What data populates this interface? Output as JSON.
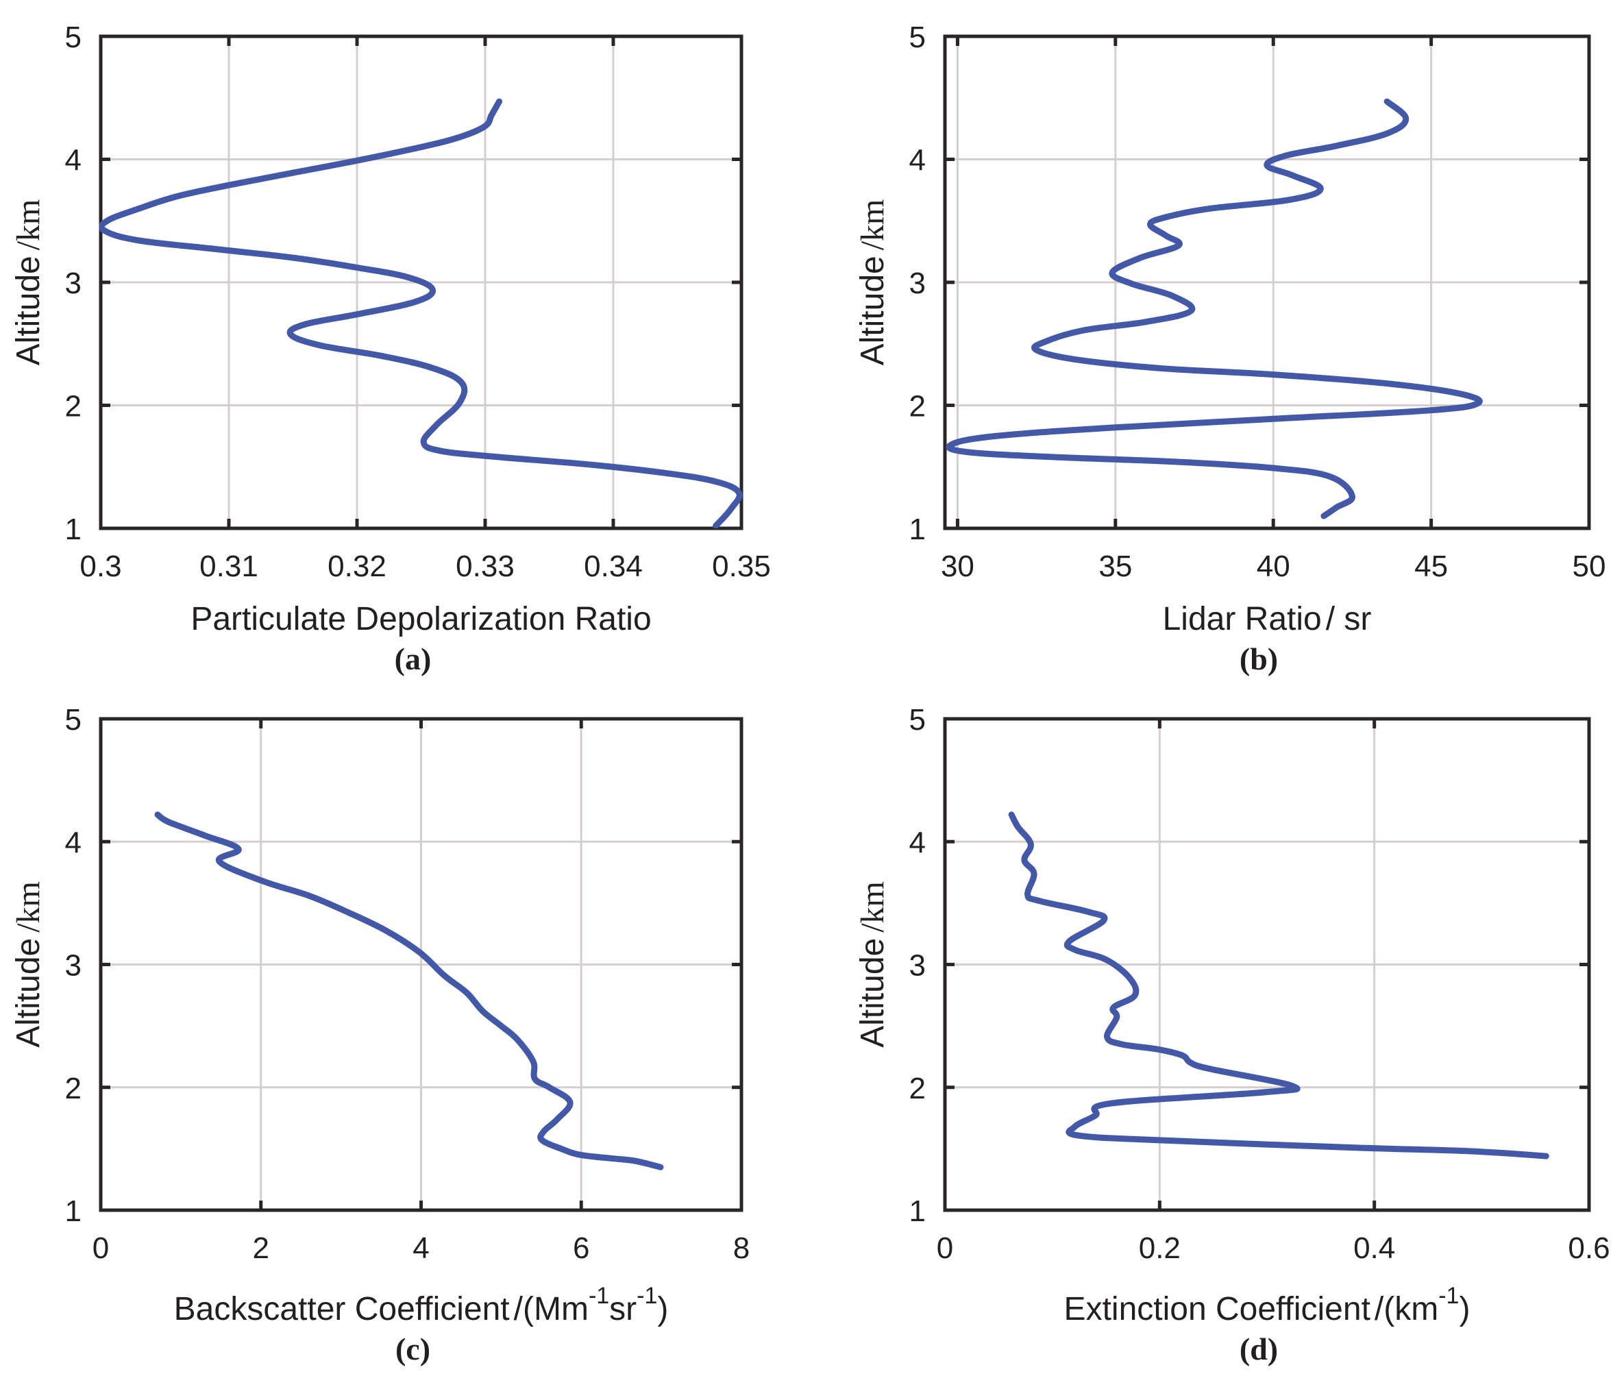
{
  "colors": {
    "series": "#4359a8",
    "axis": "#2b2626",
    "grid": "#d6cece",
    "text": "#231f20"
  },
  "chart_data": [
    {
      "id": "a",
      "type": "line",
      "panel_label": "(a)",
      "title": "",
      "xlabel": "Particulate Depolarization Ratio",
      "xlabel_unit": "",
      "xlabel_sup": [],
      "ylabel_main": "Altitude",
      "ylabel_unit": "/km",
      "xlim": [
        0.3,
        0.35
      ],
      "ylim": [
        1,
        5
      ],
      "xticks": [
        0.3,
        0.31,
        0.32,
        0.33,
        0.34,
        0.35
      ],
      "xtick_labels": [
        "0.3",
        "0.31",
        "0.32",
        "0.33",
        "0.34",
        "0.35"
      ],
      "yticks": [
        1,
        2,
        3,
        4,
        5
      ],
      "ytick_labels": [
        "1",
        "2",
        "3",
        "4",
        "5"
      ],
      "grid": true,
      "series": [
        {
          "name": "depolarization",
          "x": [
            0.3311,
            0.3305,
            0.33,
            0.328,
            0.325,
            0.32,
            0.315,
            0.31,
            0.306,
            0.303,
            0.3005,
            0.3003,
            0.303,
            0.309,
            0.315,
            0.32,
            0.324,
            0.3259,
            0.3245,
            0.32,
            0.316,
            0.3148,
            0.317,
            0.322,
            0.326,
            0.3282,
            0.328,
            0.3262,
            0.3252,
            0.3265,
            0.331,
            0.338,
            0.344,
            0.348,
            0.3498,
            0.3492,
            0.348
          ],
          "y": [
            4.47,
            4.36,
            4.27,
            4.18,
            4.1,
            3.99,
            3.89,
            3.79,
            3.7,
            3.6,
            3.5,
            3.42,
            3.34,
            3.27,
            3.2,
            3.12,
            3.04,
            2.94,
            2.84,
            2.74,
            2.66,
            2.58,
            2.49,
            2.4,
            2.3,
            2.18,
            2.02,
            1.84,
            1.7,
            1.63,
            1.58,
            1.52,
            1.45,
            1.38,
            1.29,
            1.16,
            1.02
          ]
        }
      ]
    },
    {
      "id": "b",
      "type": "line",
      "panel_label": "(b)",
      "title": "",
      "xlabel": "Lidar Ratio",
      "xlabel_unit": "/ sr",
      "xlabel_sup": [],
      "ylabel_main": "Altitude",
      "ylabel_unit": "/km",
      "xlim": [
        29.6,
        50
      ],
      "ylim": [
        1,
        5
      ],
      "xticks": [
        30,
        35,
        40,
        45,
        50
      ],
      "xtick_labels": [
        "30",
        "35",
        "40",
        "45",
        "50"
      ],
      "yticks": [
        1,
        2,
        3,
        4,
        5
      ],
      "ytick_labels": [
        "1",
        "2",
        "3",
        "4",
        "5"
      ],
      "grid": true,
      "series": [
        {
          "name": "lidar-ratio",
          "x": [
            43.6,
            44.2,
            43.6,
            42.0,
            40.4,
            39.8,
            40.6,
            41.5,
            40.5,
            38.0,
            36.6,
            36.1,
            36.6,
            37.0,
            35.8,
            34.9,
            35.5,
            36.8,
            37.4,
            36.0,
            34.0,
            32.8,
            32.5,
            33.8,
            36.5,
            40.0,
            43.5,
            45.8,
            46.5,
            45.0,
            40.0,
            35.0,
            31.2,
            29.8,
            30.3,
            33.0,
            37.0,
            40.0,
            41.8,
            42.5,
            42.0,
            41.6
          ],
          "y": [
            4.47,
            4.33,
            4.21,
            4.11,
            4.03,
            3.95,
            3.87,
            3.76,
            3.67,
            3.6,
            3.53,
            3.47,
            3.38,
            3.3,
            3.2,
            3.08,
            2.99,
            2.89,
            2.77,
            2.68,
            2.61,
            2.52,
            2.45,
            2.37,
            2.3,
            2.25,
            2.18,
            2.1,
            2.02,
            1.96,
            1.89,
            1.82,
            1.75,
            1.68,
            1.62,
            1.58,
            1.54,
            1.49,
            1.42,
            1.26,
            1.17,
            1.1
          ]
        }
      ]
    },
    {
      "id": "c",
      "type": "line",
      "panel_label": "(c)",
      "title": "",
      "xlabel": "Backscatter Coefficient",
      "xlabel_unit": "/(Mm",
      "xlabel_sup": [
        "-1",
        "sr",
        "-1",
        ")"
      ],
      "ylabel_main": "Altitude",
      "ylabel_unit": "/km",
      "xlim": [
        0,
        8
      ],
      "ylim": [
        1,
        5
      ],
      "xticks": [
        0,
        2,
        4,
        6,
        8
      ],
      "xtick_labels": [
        "0",
        "2",
        "4",
        "6",
        "8"
      ],
      "yticks": [
        1,
        2,
        3,
        4,
        5
      ],
      "ytick_labels": [
        "1",
        "2",
        "3",
        "4",
        "5"
      ],
      "grid": true,
      "series": [
        {
          "name": "backscatter",
          "x": [
            0.71,
            0.85,
            1.3,
            1.72,
            1.48,
            2.02,
            2.6,
            3.07,
            3.55,
            3.98,
            4.29,
            4.57,
            4.77,
            5.0,
            5.2,
            5.4,
            5.42,
            5.6,
            5.86,
            5.7,
            5.53,
            5.51,
            5.75,
            5.99,
            6.4,
            6.68,
            6.99
          ],
          "y": [
            4.22,
            4.16,
            4.05,
            3.94,
            3.84,
            3.68,
            3.56,
            3.43,
            3.28,
            3.1,
            2.91,
            2.77,
            2.62,
            2.5,
            2.39,
            2.21,
            2.07,
            2.0,
            1.88,
            1.74,
            1.64,
            1.57,
            1.5,
            1.45,
            1.42,
            1.4,
            1.35
          ]
        }
      ]
    },
    {
      "id": "d",
      "type": "line",
      "panel_label": "(d)",
      "title": "",
      "xlabel": "Extinction Coefficient",
      "xlabel_unit": "/(km",
      "xlabel_sup": [
        "-1",
        "",
        "",
        ")"
      ],
      "ylabel_main": "Altitude",
      "ylabel_unit": "/km",
      "xlim": [
        0,
        0.6
      ],
      "ylim": [
        1,
        5
      ],
      "xticks": [
        0,
        0.2,
        0.4,
        0.6
      ],
      "xtick_labels": [
        "0",
        "0.2",
        "0.4",
        "0.6"
      ],
      "yticks": [
        1,
        2,
        3,
        4,
        5
      ],
      "ytick_labels": [
        "1",
        "2",
        "3",
        "4",
        "5"
      ],
      "grid": true,
      "series": [
        {
          "name": "extinction",
          "x": [
            0.062,
            0.068,
            0.08,
            0.074,
            0.083,
            0.077,
            0.087,
            0.133,
            0.148,
            0.116,
            0.121,
            0.15,
            0.172,
            0.177,
            0.157,
            0.16,
            0.151,
            0.165,
            0.198,
            0.221,
            0.229,
            0.247,
            0.324,
            0.298,
            0.155,
            0.14,
            0.121,
            0.123,
            0.198,
            0.379,
            0.49,
            0.56
          ],
          "y": [
            4.22,
            4.12,
            3.98,
            3.85,
            3.74,
            3.57,
            3.52,
            3.43,
            3.36,
            3.19,
            3.12,
            3.04,
            2.89,
            2.75,
            2.65,
            2.57,
            2.41,
            2.35,
            2.31,
            2.26,
            2.2,
            2.15,
            2.01,
            1.96,
            1.87,
            1.77,
            1.68,
            1.61,
            1.57,
            1.51,
            1.48,
            1.44
          ]
        }
      ]
    }
  ]
}
